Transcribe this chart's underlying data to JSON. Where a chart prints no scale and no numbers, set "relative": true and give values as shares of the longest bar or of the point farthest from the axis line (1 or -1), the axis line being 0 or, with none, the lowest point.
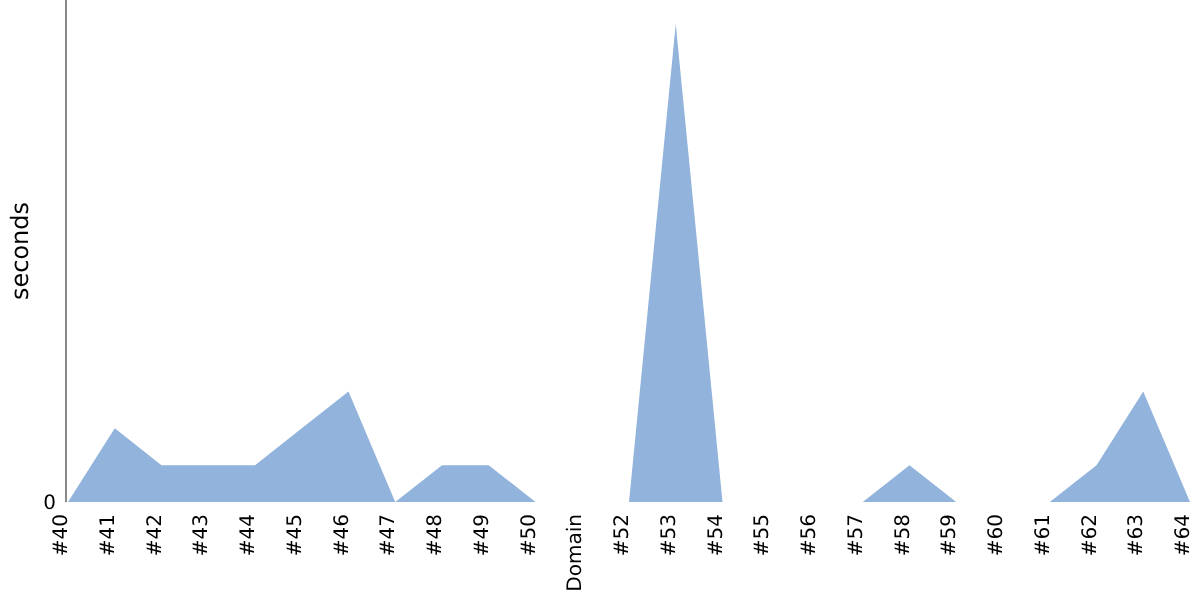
{
  "chart_data": {
    "type": "area",
    "ylabel": "seconds",
    "relative": true,
    "categories": [
      "#40",
      "#41",
      "#42",
      "#43",
      "#44",
      "#45",
      "#46",
      "#47",
      "#48",
      "#49",
      "#50",
      "Domain",
      "#52",
      "#53",
      "#54",
      "#55",
      "#56",
      "#57",
      "#58",
      "#59",
      "#60",
      "#61",
      "#62",
      "#63",
      "#64"
    ],
    "series": [
      {
        "color": "#92b4dc",
        "values": [
          0,
          0.154,
          0.077,
          0.077,
          0.077,
          0.154,
          0.231,
          0,
          0.077,
          0.077,
          0,
          0,
          0,
          1,
          0,
          0,
          0,
          0,
          0.077,
          0,
          0,
          0,
          0.077,
          0.231,
          0
        ]
      }
    ],
    "annotations": [
      "0"
    ]
  }
}
